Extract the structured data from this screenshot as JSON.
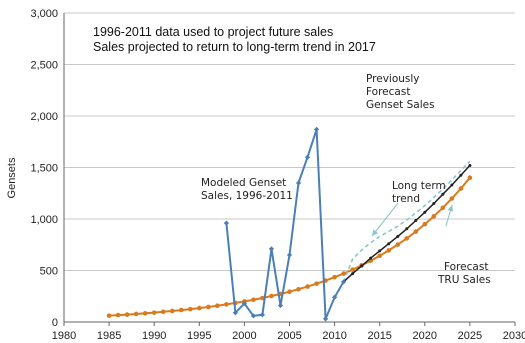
{
  "chart_data": {
    "type": "line",
    "ylabel": "Gensets",
    "xlim": [
      1980,
      2030
    ],
    "ylim": [
      0,
      3000
    ],
    "x_ticks": [
      "1980",
      "1985",
      "1990",
      "1995",
      "2000",
      "2005",
      "2010",
      "2015",
      "2020",
      "2025",
      "2030"
    ],
    "y_ticks": [
      "0",
      "500",
      "1,000",
      "1,500",
      "2,000",
      "2,500",
      "3,000"
    ],
    "grid": true,
    "colors": {
      "forecast_genset": "#d97a1e",
      "modeled_genset": "#4a7fb8",
      "long_term_trend": "#222222",
      "forecast_tru": "#8ec5cf",
      "annotation_arrow": "#8ec5cf"
    },
    "annotations": {
      "top_line1": "1996-2011 data used to project future sales",
      "top_line2": "Sales projected to return to long-term trend in 2017",
      "previously_forecast": [
        "Previously",
        "Forecast",
        "Genset Sales"
      ],
      "modeled": [
        "Modeled Genset",
        "Sales, 1996-2011"
      ],
      "long_term": [
        "Long term",
        "trend"
      ],
      "forecast_tru": [
        "Forecast",
        "TRU Sales"
      ]
    },
    "series": [
      {
        "key": "forecast_genset",
        "style": "line-dots",
        "x": [
          1985,
          1986,
          1987,
          1988,
          1989,
          1990,
          1991,
          1992,
          1993,
          1994,
          1995,
          1996,
          1997,
          1998,
          1999,
          2000,
          2001,
          2002,
          2003,
          2004,
          2005,
          2006,
          2007,
          2008,
          2009,
          2010,
          2011,
          2012,
          2013,
          2014,
          2015,
          2016,
          2017,
          2018,
          2019,
          2020,
          2021,
          2022,
          2023,
          2024,
          2025
        ],
        "values": [
          62,
          67,
          72,
          78,
          84,
          91,
          99,
          107,
          116,
          125,
          135,
          146,
          158,
          171,
          185,
          200,
          216,
          233,
          252,
          272,
          294,
          318,
          344,
          372,
          402,
          435,
          470,
          508,
          550,
          595,
          643,
          695,
          751,
          812,
          878,
          949,
          1026,
          1109,
          1199,
          1296,
          1401
        ]
      },
      {
        "key": "modeled_genset",
        "style": "line-diamonds",
        "x": [
          1998,
          1999,
          2000,
          2001,
          2002,
          2003,
          2004,
          2005,
          2006,
          2007,
          2008,
          2009,
          2010,
          2011
        ],
        "values": [
          960,
          90,
          180,
          60,
          70,
          710,
          160,
          650,
          1350,
          1600,
          1870,
          30,
          240,
          390
        ]
      },
      {
        "key": "long_term_trend",
        "style": "line-small-dots",
        "x": [
          2011,
          2012,
          2013,
          2014,
          2015,
          2016,
          2017,
          2018,
          2019,
          2020,
          2021,
          2022,
          2023,
          2024,
          2025
        ],
        "values": [
          390,
          470,
          545,
          620,
          690,
          760,
          830,
          905,
          985,
          1065,
          1150,
          1240,
          1330,
          1425,
          1520
        ]
      },
      {
        "key": "forecast_tru",
        "style": "dashed",
        "x": [
          2011,
          2012,
          2013,
          2014,
          2015,
          2016,
          2017,
          2018,
          2019,
          2020,
          2021,
          2022,
          2023,
          2024,
          2025
        ],
        "values": [
          390,
          610,
          700,
          770,
          830,
          880,
          930,
          990,
          1060,
          1130,
          1210,
          1290,
          1380,
          1470,
          1560
        ]
      }
    ]
  }
}
